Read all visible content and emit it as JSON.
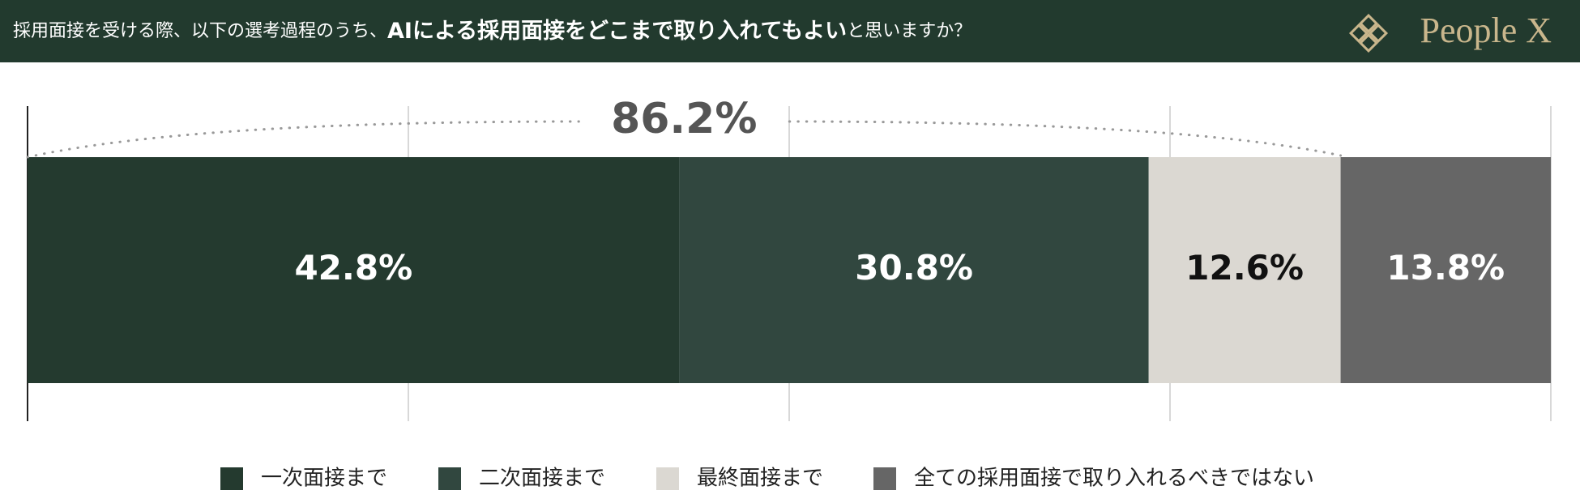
{
  "chart_data": {
    "type": "stacked-bar-horizontal",
    "title": [
      "採用面接を受ける際、以下の選考過程のうち、",
      "AIによる採用面接をどこまで取り入れてもよい",
      "と思いますか？"
    ],
    "logo": "People X",
    "annotation": "86.2%",
    "xlim": [
      0,
      100
    ],
    "xticks": [
      0,
      25,
      50,
      75,
      100
    ],
    "grid": true,
    "series": [
      {
        "name": "一次面接まで",
        "color": "#243a2f",
        "values": [
          42.8
        ],
        "value_labels": [
          "42.8%"
        ],
        "label_color": "#ffffff"
      },
      {
        "name": "二次面接まで",
        "color": "#31473f",
        "values": [
          30.8
        ],
        "value_labels": [
          "30.8%"
        ],
        "label_color": "#ffffff"
      },
      {
        "name": "最終面接まで",
        "color": "#dbd8d2",
        "values": [
          12.6
        ],
        "value_labels": [
          "12.6%"
        ],
        "label_color": "#111111"
      },
      {
        "name": "全ての採用面接で取り入れるべきではない",
        "color": "#666666",
        "values": [
          13.8
        ],
        "value_labels": [
          "13.8%"
        ],
        "label_color": "#ffffff"
      }
    ]
  }
}
